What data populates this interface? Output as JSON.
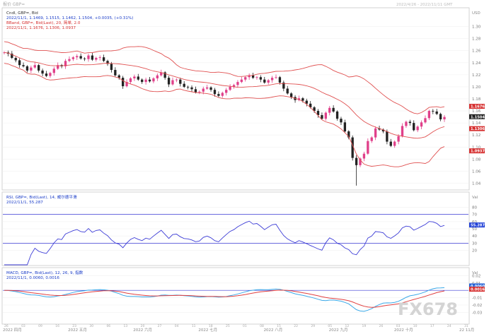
{
  "window": {
    "left_caption": "报价 GBP=",
    "right_caption": "2022/4/26 - 2022/11/11 GMT"
  },
  "panels": {
    "price": {
      "legend": [
        "Cndl, GBP=, Bid",
        "2022/11/1, 1.1469, 1.1515, 1.1462, 1.1504, +0.0035, (+0.31%)",
        "BBand, GBP=, Bid(Last), 20, 简单, 2.0",
        "2022/11/1, 1.1676, 1.1306, 1.0937"
      ],
      "legend_colors": [
        "#333333",
        "#1a3cc8",
        "#d63030",
        "#d63030"
      ],
      "unit": "USD",
      "ylim": [
        1.03,
        1.33
      ],
      "ticks": [
        "1.30",
        "1.28",
        "1.26",
        "1.24",
        "1.22",
        "1.20",
        "1.18",
        "1.16",
        "1.14",
        "1.12",
        "1.10",
        "1.08",
        "1.06",
        "1.04"
      ],
      "tick_values": [
        1.3,
        1.28,
        1.26,
        1.24,
        1.22,
        1.2,
        1.18,
        1.16,
        1.14,
        1.12,
        1.1,
        1.08,
        1.06,
        1.04
      ],
      "tags": [
        {
          "text": "1.1676",
          "value": 1.1676,
          "color": "#d63030"
        },
        {
          "text": "1.1504",
          "value": 1.1504,
          "color": "#222222"
        },
        {
          "text": "1.1306",
          "value": 1.1306,
          "color": "#d63030"
        },
        {
          "text": "1.0937",
          "value": 1.0937,
          "color": "#d63030"
        }
      ]
    },
    "rsi": {
      "legend": [
        "RSI, GBP=, Bid(Last), 14, 威尔德平滑",
        "2022/11/1, 55.287"
      ],
      "unit": "Val",
      "ylim": [
        0,
        100
      ],
      "ticks": [
        "80",
        "70",
        "60",
        "50",
        "40",
        "30",
        "20"
      ],
      "tick_values": [
        80,
        70,
        60,
        50,
        40,
        30,
        20
      ],
      "bands": [
        70,
        30
      ],
      "tag": {
        "text": "55.2870",
        "value": 55.287
      }
    },
    "macd": {
      "legend": [
        "MACD, GBP=, Bid(Last), 12, 26, 9, 指数",
        "2022/11/1, 0.0060, 0.0016"
      ],
      "unit": "Val",
      "ylim": [
        -0.045,
        0.03
      ],
      "ticks": [
        "0.02",
        "0.01",
        "0.00",
        "-0.01",
        "-0.02",
        "-0.03"
      ],
      "tick_values": [
        0.02,
        0.01,
        0.0,
        -0.01,
        -0.02,
        -0.03
      ],
      "zero_line": 0.0,
      "tags": [
        {
          "text": "0.0060",
          "value": 0.006,
          "color": "#1f5fd6"
        },
        {
          "text": "0.0016",
          "value": 0.0016,
          "color": "#d63030"
        }
      ]
    }
  },
  "x_axis": {
    "labels": [
      "2022 四月",
      "2022 五月",
      "2022 六月",
      "2022 七月",
      "2022 八月",
      "2022 九月",
      "2022 十月",
      "22 11月"
    ],
    "minor_labels": [
      "26",
      "03",
      "09",
      "16",
      "23",
      "30",
      "06",
      "13",
      "20",
      "27",
      "04",
      "11",
      "18",
      "25",
      "01",
      "08",
      "15",
      "22",
      "29",
      "05",
      "12",
      "19",
      "26",
      "03",
      "10",
      "17",
      "24",
      "31"
    ]
  },
  "watermark": "FX678",
  "colors": {
    "up": "#e0408a",
    "down": "#222222",
    "bband": "#e05050",
    "rsi": "#3b3bd6",
    "macd": "#3aa8e8",
    "signal": "#e04040",
    "band_line": "#3b3bd6"
  },
  "chart_data": [
    {
      "type": "candlestick",
      "title": "Cndl, GBP=, Bid",
      "x_range": [
        "2022-04-26",
        "2022-11-01"
      ],
      "ylim": [
        1.03,
        1.33
      ],
      "closes": [
        1.257,
        1.255,
        1.248,
        1.244,
        1.236,
        1.234,
        1.227,
        1.232,
        1.236,
        1.227,
        1.222,
        1.218,
        1.223,
        1.23,
        1.236,
        1.234,
        1.243,
        1.246,
        1.249,
        1.251,
        1.247,
        1.246,
        1.252,
        1.245,
        1.248,
        1.249,
        1.243,
        1.238,
        1.228,
        1.219,
        1.215,
        1.201,
        1.208,
        1.214,
        1.217,
        1.212,
        1.208,
        1.212,
        1.209,
        1.214,
        1.219,
        1.224,
        1.215,
        1.204,
        1.211,
        1.212,
        1.205,
        1.2,
        1.199,
        1.196,
        1.191,
        1.192,
        1.197,
        1.199,
        1.195,
        1.188,
        1.185,
        1.19,
        1.195,
        1.2,
        1.203,
        1.208,
        1.212,
        1.216,
        1.219,
        1.215,
        1.216,
        1.212,
        1.207,
        1.211,
        1.215,
        1.216,
        1.207,
        1.197,
        1.189,
        1.183,
        1.178,
        1.181,
        1.177,
        1.172,
        1.166,
        1.16,
        1.153,
        1.147,
        1.157,
        1.165,
        1.159,
        1.147,
        1.141,
        1.126,
        1.116,
        1.082,
        1.07,
        1.081,
        1.089,
        1.11,
        1.116,
        1.131,
        1.129,
        1.126,
        1.109,
        1.102,
        1.109,
        1.118,
        1.135,
        1.142,
        1.14,
        1.128,
        1.134,
        1.141,
        1.148,
        1.16,
        1.159,
        1.155,
        1.146,
        1.15
      ],
      "first_open": 1.257,
      "bband": {
        "period": 20,
        "stddev": 2.0,
        "last": [
          1.1676,
          1.1306,
          1.0937
        ]
      }
    },
    {
      "type": "line",
      "title": "RSI, GBP=, Bid(Last), 14, 威尔德平滑",
      "ylim": [
        0,
        100
      ],
      "last": 55.287
    },
    {
      "type": "line",
      "title": "MACD, GBP=, Bid(Last), 12, 26, 9, 指数",
      "series": [
        {
          "name": "MACD",
          "last": 0.006
        },
        {
          "name": "Signal",
          "last": 0.0016
        }
      ]
    }
  ]
}
